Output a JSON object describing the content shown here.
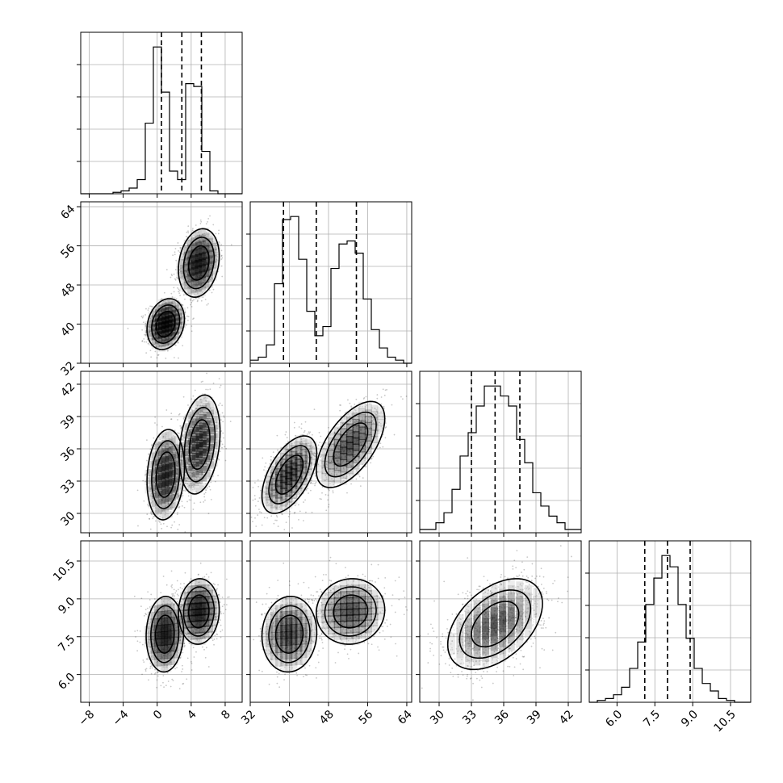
{
  "chart_data": {
    "type": "corner",
    "grid": true,
    "colors": {
      "ink": "#000000",
      "grid": "#b0b0b0",
      "density_scale": [
        "#ffffff",
        "#000000"
      ]
    },
    "parameters": [
      {
        "range": [
          -9,
          10
        ],
        "ticks": [
          -8,
          -4,
          0,
          4,
          8
        ],
        "tick_labels": [
          "−8",
          "−4",
          "0",
          "4",
          "8"
        ],
        "quantiles": [
          0.5,
          2.9,
          5.2
        ]
      },
      {
        "range": [
          32,
          65
        ],
        "ticks": [
          32,
          40,
          48,
          56,
          64
        ],
        "tick_labels": [
          "32",
          "40",
          "48",
          "56",
          "64"
        ],
        "quantiles": [
          38.8,
          45.5,
          53.7
        ]
      },
      {
        "range": [
          28.2,
          43.2
        ],
        "ticks": [
          30,
          33,
          36,
          39,
          42
        ],
        "tick_labels": [
          "30",
          "33",
          "36",
          "39",
          "42"
        ],
        "quantiles": [
          33.0,
          35.2,
          37.5
        ]
      },
      {
        "range": [
          4.9,
          11.3
        ],
        "ticks": [
          6.0,
          7.5,
          9.0,
          10.5
        ],
        "tick_labels": [
          "6.0",
          "7.5",
          "9.0",
          "10.5"
        ],
        "quantiles": [
          7.1,
          8.0,
          8.9
        ]
      }
    ],
    "histograms": [
      {
        "param": 0,
        "bin_edges": [
          -9,
          -8.05,
          -7.1,
          -6.15,
          -5.2,
          -4.25,
          -3.3,
          -2.35,
          -1.4,
          -0.45,
          0.5,
          1.45,
          2.4,
          3.35,
          4.3,
          5.25,
          6.2,
          7.15,
          8.1,
          9.05,
          10
        ],
        "counts": [
          0,
          0,
          0,
          0,
          0.5,
          1,
          2,
          5,
          25,
          52,
          36,
          8,
          5,
          39,
          38,
          15,
          1,
          0,
          0,
          0
        ]
      },
      {
        "param": 1,
        "bin_edges": [
          32,
          33.65,
          35.3,
          36.95,
          38.6,
          40.25,
          41.9,
          43.55,
          45.2,
          46.85,
          48.5,
          50.15,
          51.8,
          53.45,
          55.1,
          56.75,
          58.4,
          60.05,
          61.7,
          63.35,
          65
        ],
        "counts": [
          1,
          2,
          6,
          26,
          47,
          48,
          34,
          17,
          9,
          12,
          31,
          39,
          40,
          36,
          21,
          11,
          5,
          2,
          1,
          0
        ]
      },
      {
        "param": 2,
        "bin_edges": [
          28.2,
          28.95,
          29.7,
          30.45,
          31.2,
          31.95,
          32.7,
          33.45,
          34.2,
          34.95,
          35.7,
          36.45,
          37.2,
          37.95,
          38.7,
          39.45,
          40.2,
          40.95,
          41.7,
          42.45,
          43.2
        ],
        "counts": [
          1,
          1,
          3,
          6,
          13,
          23,
          30,
          38,
          44,
          44,
          41,
          38,
          28,
          21,
          12,
          8,
          5,
          3,
          1,
          1
        ]
      },
      {
        "param": 3,
        "bin_edges": [
          4.9,
          5.22,
          5.54,
          5.86,
          6.18,
          6.5,
          6.82,
          7.14,
          7.46,
          7.78,
          8.1,
          8.42,
          8.74,
          9.06,
          9.38,
          9.7,
          10.02,
          10.34,
          10.66,
          10.98,
          11.3
        ],
        "counts": [
          0,
          0.5,
          1,
          2,
          4,
          9,
          16,
          26,
          33,
          39,
          36,
          26,
          17,
          9,
          5,
          3,
          1,
          0.5,
          0,
          0
        ]
      }
    ],
    "joint_panels": [
      {
        "x_param": 0,
        "y_param": 1,
        "modes": [
          {
            "mean": [
              1.0,
              40.0
            ],
            "sd": [
              1.1,
              2.6
            ],
            "rho": 0.2,
            "weight": 0.5
          },
          {
            "mean": [
              4.9,
              52.5
            ],
            "sd": [
              1.2,
              3.5
            ],
            "rho": 0.2,
            "weight": 0.5
          }
        ]
      },
      {
        "x_param": 0,
        "y_param": 2,
        "modes": [
          {
            "mean": [
              1.0,
              33.6
            ],
            "sd": [
              1.1,
              2.1
            ],
            "rho": 0.15,
            "weight": 0.5
          },
          {
            "mean": [
              5.0,
              36.4
            ],
            "sd": [
              1.2,
              2.3
            ],
            "rho": 0.25,
            "weight": 0.5
          }
        ]
      },
      {
        "x_param": 1,
        "y_param": 2,
        "modes": [
          {
            "mean": [
              40.0,
              33.6
            ],
            "sd": [
              2.8,
              1.8
            ],
            "rho": 0.55,
            "weight": 0.5
          },
          {
            "mean": [
              52.5,
              36.4
            ],
            "sd": [
              3.5,
              2.0
            ],
            "rho": 0.6,
            "weight": 0.5
          }
        ]
      },
      {
        "x_param": 0,
        "y_param": 3,
        "modes": [
          {
            "mean": [
              0.9,
              7.6
            ],
            "sd": [
              1.1,
              0.75
            ],
            "rho": 0.05,
            "weight": 0.5
          },
          {
            "mean": [
              4.9,
              8.5
            ],
            "sd": [
              1.2,
              0.65
            ],
            "rho": 0.05,
            "weight": 0.5
          }
        ]
      },
      {
        "x_param": 1,
        "y_param": 3,
        "modes": [
          {
            "mean": [
              40.0,
              7.6
            ],
            "sd": [
              2.8,
              0.75
            ],
            "rho": 0.05,
            "weight": 0.5
          },
          {
            "mean": [
              52.5,
              8.5
            ],
            "sd": [
              3.5,
              0.65
            ],
            "rho": 0.05,
            "weight": 0.5
          }
        ]
      },
      {
        "x_param": 2,
        "y_param": 3,
        "modes": [
          {
            "mean": [
              35.2,
              8.0
            ],
            "sd": [
              2.2,
              0.9
            ],
            "rho": 0.45,
            "weight": 1.0
          }
        ]
      }
    ],
    "contour_levels": "1-sigma, 1.5-sigma, 2-sigma enclosing regions",
    "scatter": "light gray sample points outside the outermost contour"
  }
}
